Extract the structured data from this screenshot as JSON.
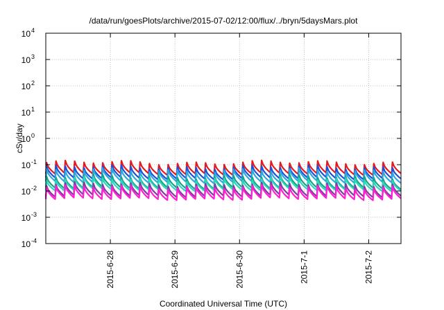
{
  "chart_data": {
    "type": "line",
    "title": "/data/run/goesPlots/archive/2015-07-02/12:00/flux/../bryn/5daysMars.plot",
    "xlabel": "Coordinated Universal Time (UTC)",
    "ylabel": "cSv/day",
    "yscale": "log",
    "ylim": [
      0.0001,
      10000
    ],
    "y_ticks": [
      {
        "value": 0.0001,
        "base": "10",
        "exp": "-4"
      },
      {
        "value": 0.001,
        "base": "10",
        "exp": "-3"
      },
      {
        "value": 0.01,
        "base": "10",
        "exp": "-2"
      },
      {
        "value": 0.1,
        "base": "10",
        "exp": "-1"
      },
      {
        "value": 1,
        "base": "10",
        "exp": "0"
      },
      {
        "value": 10,
        "base": "10",
        "exp": "1"
      },
      {
        "value": 100,
        "base": "10",
        "exp": "2"
      },
      {
        "value": 1000,
        "base": "10",
        "exp": "3"
      },
      {
        "value": 10000,
        "base": "10",
        "exp": "4"
      }
    ],
    "xlim": [
      "2015-06-27 00:00",
      "2015-07-02 12:00"
    ],
    "x_ticks": [
      "2015-6-28",
      "2015-6-29",
      "2015-6-30",
      "2015-7-1",
      "2015-7-2"
    ],
    "grid": true,
    "legend": "none",
    "pattern": "sawtooth, about 7 cycles per day; each cycle jumps to a peak and decays to a trough",
    "series": [
      {
        "color": "#e41a1c",
        "peak": 0.12,
        "trough": 0.045
      },
      {
        "color": "#1f4fd8",
        "peak": 0.08,
        "trough": 0.03
      },
      {
        "color": "#2aa8e0",
        "peak": 0.06,
        "trough": 0.022
      },
      {
        "color": "#17a589",
        "peak": 0.035,
        "trough": 0.013
      },
      {
        "color": "#2fd4c0",
        "peak": 0.028,
        "trough": 0.011
      },
      {
        "color": "#7b3f9e",
        "peak": 0.018,
        "trough": 0.0065
      },
      {
        "color": "#ff1fd2",
        "peak": 0.014,
        "trough": 0.005
      }
    ]
  }
}
